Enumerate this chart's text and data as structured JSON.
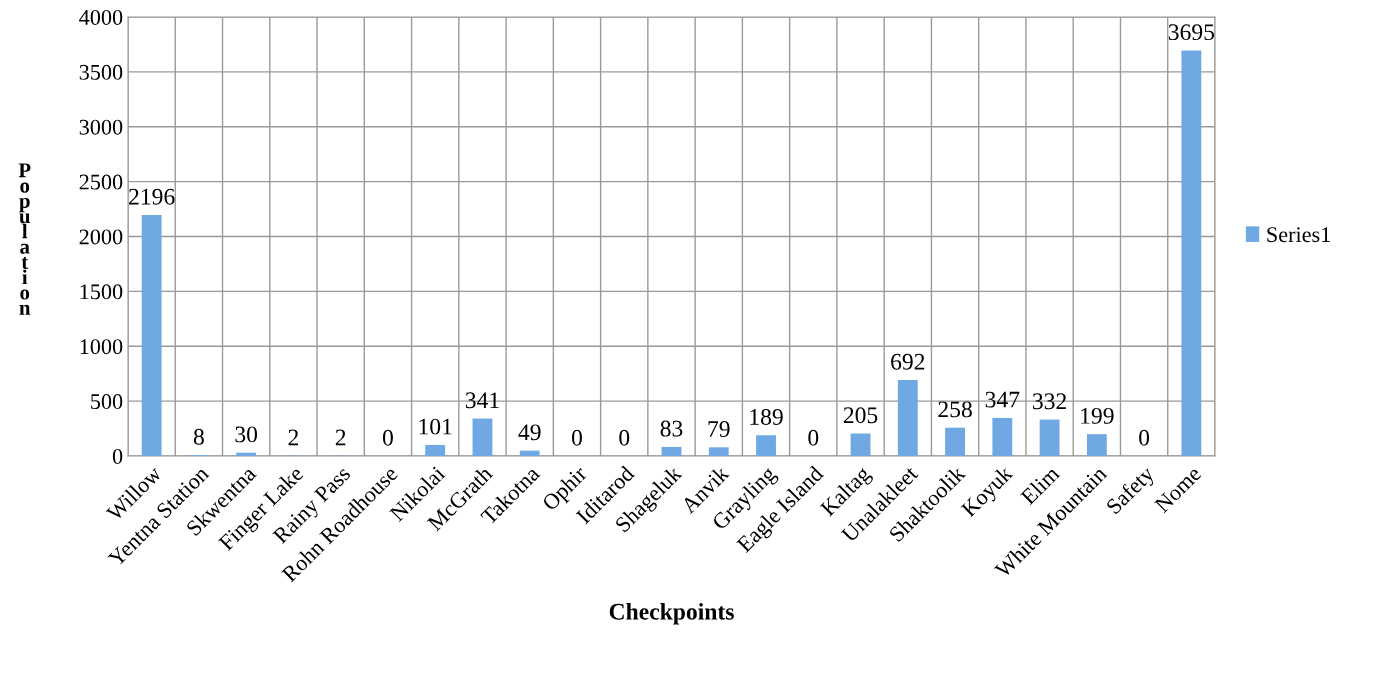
{
  "chart_data": {
    "type": "bar",
    "xlabel": "Checkpoints",
    "ylabel": "Population",
    "categories": [
      "Willow",
      "Yentna Station",
      "Skwentna",
      "Finger Lake",
      "Rainy Pass",
      "Rohn Roadhouse",
      "Nikolai",
      "McGrath",
      "Takotna",
      "Ophir",
      "Iditarod",
      "Shageluk",
      "Anvik",
      "Grayling",
      "Eagle Island",
      "Kaltag",
      "Unalakleet",
      "Shaktoolik",
      "Koyuk",
      "Elim",
      "White Mountain",
      "Safety",
      "Nome"
    ],
    "series": [
      {
        "name": "Series1",
        "color": "#6fa8e3",
        "values": [
          2196,
          8,
          30,
          2,
          2,
          0,
          101,
          341,
          49,
          0,
          0,
          83,
          79,
          189,
          0,
          205,
          692,
          258,
          347,
          332,
          199,
          0,
          3695
        ]
      }
    ],
    "ylim": [
      0,
      4000
    ],
    "yticks": [
      0,
      500,
      1000,
      1500,
      2000,
      2500,
      3000,
      3500,
      4000
    ],
    "grid": true,
    "legend": "right",
    "data_labels": true
  }
}
